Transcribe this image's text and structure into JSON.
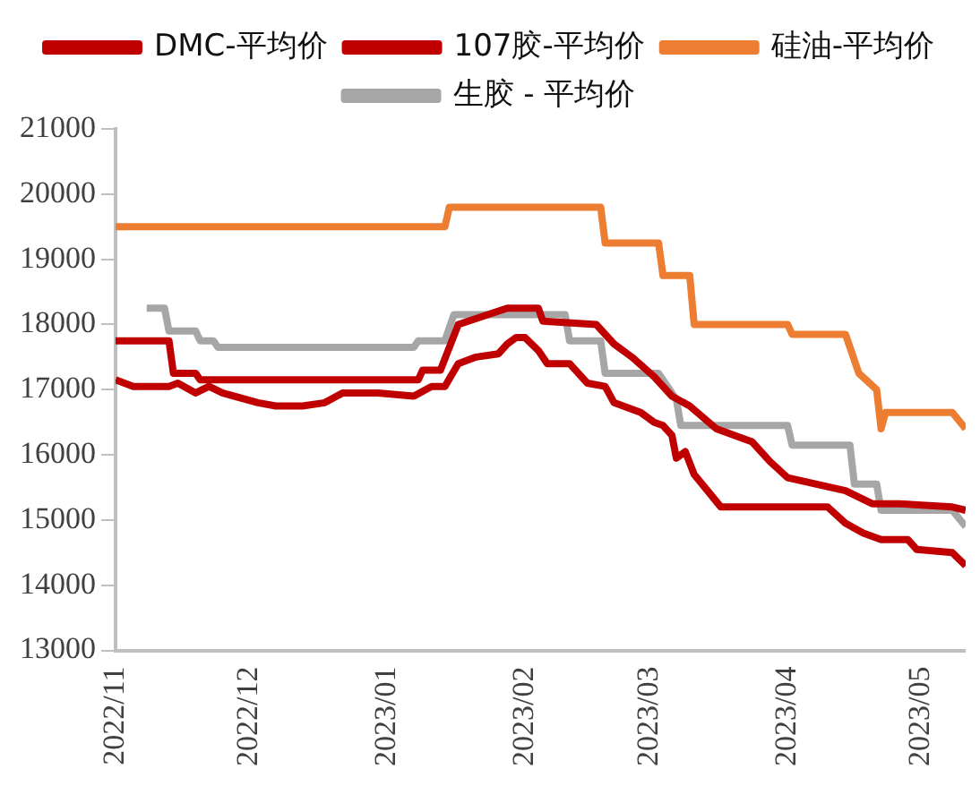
{
  "chart_data": {
    "type": "line",
    "legend": "top",
    "grid": false,
    "line_style": "solid",
    "marker": "none",
    "xlim": [
      "2022-11-01",
      "2023-05-11"
    ],
    "xticks": [
      {
        "value": "2022-11-01",
        "label": "2022/11"
      },
      {
        "value": "2022-12-01",
        "label": "2022/12"
      },
      {
        "value": "2023-01-01",
        "label": "2023/01"
      },
      {
        "value": "2023-02-01",
        "label": "2023/02"
      },
      {
        "value": "2023-03-01",
        "label": "2023/03"
      },
      {
        "value": "2023-04-01",
        "label": "2023/04"
      },
      {
        "value": "2023-05-01",
        "label": "2023/05"
      }
    ],
    "ylim": [
      13000,
      21000
    ],
    "yticks": [
      13000,
      14000,
      15000,
      16000,
      17000,
      18000,
      19000,
      20000,
      21000
    ],
    "series": [
      {
        "name": "DMC-平均价",
        "color": "#c00000",
        "x": [
          "2022-11-01",
          "2022-11-05",
          "2022-11-13",
          "2022-11-15",
          "2022-11-19",
          "2022-11-22",
          "2022-11-25",
          "2022-12-03",
          "2022-12-07",
          "2022-12-13",
          "2022-12-18",
          "2022-12-22",
          "2022-12-30",
          "2023-01-07",
          "2023-01-11",
          "2023-01-14",
          "2023-01-17",
          "2023-01-21",
          "2023-01-26",
          "2023-01-28",
          "2023-01-30",
          "2023-02-01",
          "2023-02-04",
          "2023-02-06",
          "2023-02-11",
          "2023-02-15",
          "2023-02-19",
          "2023-02-21",
          "2023-02-27",
          "2023-03-02",
          "2023-03-04",
          "2023-03-06",
          "2023-03-07",
          "2023-03-09",
          "2023-03-11",
          "2023-03-14",
          "2023-03-17",
          "2023-04-10",
          "2023-04-14",
          "2023-04-18",
          "2023-04-22",
          "2023-04-28",
          "2023-04-30",
          "2023-05-08",
          "2023-05-11"
        ],
        "values": [
          17150,
          17050,
          17050,
          17100,
          16950,
          17050,
          16950,
          16800,
          16750,
          16750,
          16800,
          16950,
          16950,
          16900,
          17050,
          17050,
          17400,
          17500,
          17550,
          17700,
          17800,
          17800,
          17600,
          17400,
          17400,
          17100,
          17050,
          16800,
          16650,
          16500,
          16450,
          16300,
          15950,
          16050,
          15700,
          15450,
          15200,
          15200,
          14950,
          14800,
          14700,
          14700,
          14550,
          14500,
          14300
        ]
      },
      {
        "name": "107胶-平均价",
        "color": "#c00000",
        "x": [
          "2022-11-01",
          "2022-11-13",
          "2022-11-14",
          "2022-11-19",
          "2022-11-20",
          "2023-01-08",
          "2023-01-09",
          "2023-01-13",
          "2023-01-17",
          "2023-01-28",
          "2023-02-04",
          "2023-02-05",
          "2023-02-17",
          "2023-02-21",
          "2023-02-25",
          "2023-03-02",
          "2023-03-06",
          "2023-03-10",
          "2023-03-16",
          "2023-03-24",
          "2023-03-28",
          "2023-04-01",
          "2023-04-14",
          "2023-04-20",
          "2023-04-26",
          "2023-05-08",
          "2023-05-11"
        ],
        "values": [
          17750,
          17750,
          17250,
          17250,
          17150,
          17150,
          17300,
          17300,
          18000,
          18250,
          18250,
          18050,
          18000,
          17700,
          17500,
          17200,
          16900,
          16750,
          16400,
          16200,
          15900,
          15650,
          15450,
          15250,
          15250,
          15200,
          15150
        ]
      },
      {
        "name": "硅油-平均价",
        "color": "#ed7d31",
        "x": [
          "2022-11-01",
          "2023-01-14",
          "2023-01-15",
          "2023-02-18",
          "2023-02-19",
          "2023-03-03",
          "2023-03-04",
          "2023-03-10",
          "2023-03-11",
          "2023-04-01",
          "2023-04-02",
          "2023-04-14",
          "2023-04-17",
          "2023-04-21",
          "2023-04-22",
          "2023-04-23",
          "2023-05-08",
          "2023-05-11"
        ],
        "values": [
          19500,
          19500,
          19800,
          19800,
          19250,
          19250,
          18750,
          18750,
          18000,
          18000,
          17850,
          17850,
          17250,
          17000,
          16400,
          16650,
          16650,
          16400
        ]
      },
      {
        "name": "生胶 - 平均价",
        "color": "#a6a6a6",
        "x": [
          "2022-11-08",
          "2022-11-12",
          "2022-11-13",
          "2022-11-19",
          "2022-11-20",
          "2022-11-23",
          "2022-11-24",
          "2023-01-07",
          "2023-01-08",
          "2023-01-14",
          "2023-01-16",
          "2023-02-10",
          "2023-02-11",
          "2023-02-18",
          "2023-02-19",
          "2023-03-03",
          "2023-03-07",
          "2023-03-08",
          "2023-04-01",
          "2023-04-02",
          "2023-04-15",
          "2023-04-16",
          "2023-04-21",
          "2023-04-22",
          "2023-05-08",
          "2023-05-11"
        ],
        "values": [
          18250,
          18250,
          17900,
          17900,
          17750,
          17750,
          17650,
          17650,
          17750,
          17750,
          18150,
          18150,
          17750,
          17750,
          17250,
          17250,
          16850,
          16450,
          16450,
          16150,
          16150,
          15550,
          15550,
          15150,
          15150,
          14900
        ]
      }
    ]
  }
}
